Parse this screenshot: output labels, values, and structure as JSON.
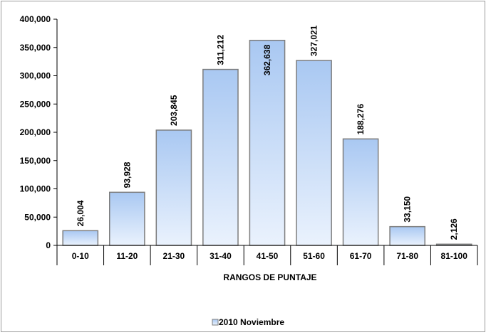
{
  "chart_data": {
    "type": "bar",
    "categories": [
      "0-10",
      "11-20",
      "21-30",
      "31-40",
      "41-50",
      "51-60",
      "61-70",
      "71-80",
      "81-100"
    ],
    "series": [
      {
        "name": "2010 Noviembre",
        "values": [
          26004,
          93928,
          203845,
          311212,
          362638,
          327021,
          188276,
          33150,
          2126
        ],
        "labels": [
          "26,004",
          "93,928",
          "203,845",
          "311,212",
          "362,638",
          "327,021",
          "188,276",
          "33,150",
          "2,126"
        ]
      }
    ],
    "xlabel": "RANGOS DE PUNTAJE",
    "ylabel": "",
    "ylim": [
      0,
      400000
    ],
    "yticks": [
      0,
      50000,
      100000,
      150000,
      200000,
      250000,
      300000,
      350000,
      400000
    ],
    "ytick_labels": [
      "0",
      "50,000",
      "100,000",
      "150,000",
      "200,000",
      "250,000",
      "300,000",
      "350,000",
      "400,000"
    ],
    "grid": false,
    "legend_position": "bottom",
    "bar_gradient": [
      "#a9c8f2",
      "#eaf2fd"
    ],
    "bar_stroke": "#7d7d7d"
  }
}
